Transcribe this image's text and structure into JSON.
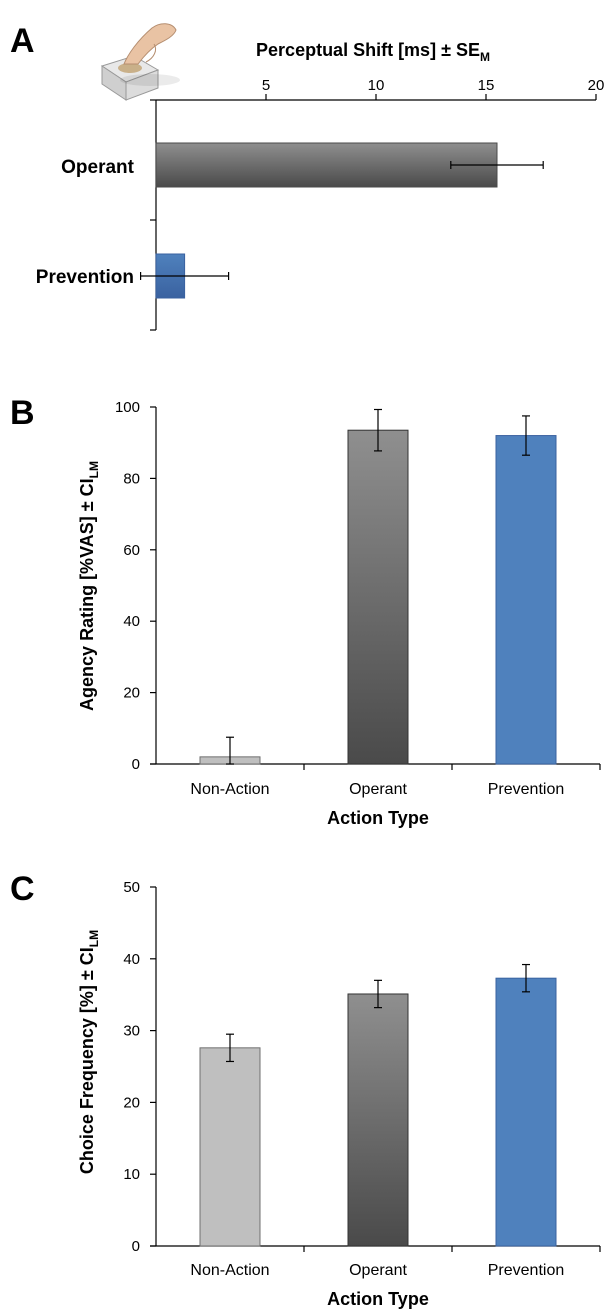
{
  "colors": {
    "non_action": "#bfbfbf",
    "operant_dark": "#4a4a4a",
    "operant_light": "#8f8f8f",
    "prevention": "#4f81bd",
    "prevention_dark": "#3a62a0"
  },
  "icon": "hand-pressing-button-icon",
  "chart_data": [
    {
      "panel": "A",
      "type": "bar",
      "orientation": "horizontal",
      "title": "Perceptual Shift [ms] ± SE",
      "title_subscript": "M",
      "categories": [
        "Operant",
        "Prevention"
      ],
      "values": [
        15.5,
        1.3
      ],
      "errors": [
        2.1,
        2.0
      ],
      "xlim": [
        0,
        20
      ],
      "ticks": [
        "5",
        "10",
        "15",
        "20"
      ],
      "axis_position": "top",
      "grid": false
    },
    {
      "panel": "B",
      "type": "bar",
      "categories": [
        "Non-Action",
        "Operant",
        "Prevention"
      ],
      "values": [
        2,
        93.5,
        92
      ],
      "errors": [
        5.5,
        5.8,
        5.5
      ],
      "ylabel": "Agency Rating [%VAS] ± CI",
      "ylabel_subscript": "LM",
      "xlabel": "Action Type",
      "ylim": [
        0,
        100
      ],
      "ticks": [
        "0",
        "20",
        "40",
        "60",
        "80",
        "100"
      ],
      "grid": false
    },
    {
      "panel": "C",
      "type": "bar",
      "categories": [
        "Non-Action",
        "Operant",
        "Prevention"
      ],
      "values": [
        27.6,
        35.1,
        37.3
      ],
      "errors": [
        1.9,
        1.9,
        1.9
      ],
      "ylabel": "Choice Frequency [%] ± CI",
      "ylabel_subscript": "LM",
      "xlabel": "Action Type",
      "ylim": [
        0,
        50
      ],
      "ticks": [
        "0",
        "10",
        "20",
        "30",
        "40",
        "50"
      ],
      "grid": false
    }
  ]
}
